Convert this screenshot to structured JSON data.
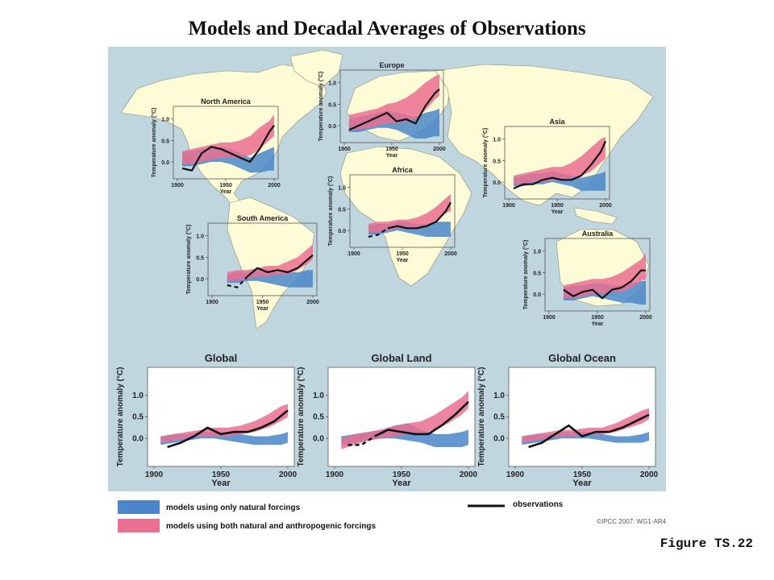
{
  "title": "Models and Decadal Averages of Observations",
  "figure_label": "Figure TS.22",
  "copyright": "©IPCC 2007: WG1-AR4",
  "legend": {
    "natural": "models using only natural forcings",
    "both": "models using both natural and anthropogenic forcings",
    "obs": "observations"
  },
  "colors": {
    "ocean": "#c0d6df",
    "land": "#fefcd6",
    "natural": "#4a86c9",
    "both": "#ea6f92",
    "overlap": "#9c5c92",
    "obs": "#111111"
  },
  "chart_data": [
    {
      "type": "area",
      "name": "North America",
      "ylabel": "Temperature anomaly (°C)",
      "xlabel": "Year",
      "xticks": [
        1900,
        1950,
        2000
      ],
      "yticks": [
        "0.0",
        "0.5",
        "1.0"
      ],
      "ylim": [
        -0.3,
        1.2
      ],
      "x": [
        1905,
        1915,
        1925,
        1935,
        1945,
        1955,
        1965,
        1975,
        1985,
        1995,
        2000
      ],
      "natural": {
        "low": [
          -0.1,
          -0.1,
          -0.05,
          0,
          0,
          -0.05,
          -0.15,
          -0.25,
          -0.25,
          -0.2,
          -0.2
        ],
        "high": [
          0.2,
          0.25,
          0.3,
          0.3,
          0.35,
          0.3,
          0.2,
          0.1,
          0.2,
          0.3,
          0.35
        ]
      },
      "both": {
        "low": [
          -0.05,
          -0.05,
          0,
          0.05,
          0.1,
          0.1,
          0.1,
          0.15,
          0.3,
          0.5,
          0.6
        ],
        "high": [
          0.25,
          0.3,
          0.35,
          0.4,
          0.45,
          0.45,
          0.5,
          0.6,
          0.8,
          0.95,
          1.1
        ]
      },
      "obs": {
        "x": [
          1905,
          1915,
          1925,
          1935,
          1945,
          1955,
          1965,
          1975,
          1985,
          1995,
          2000
        ],
        "y": [
          -0.15,
          -0.2,
          0.2,
          0.35,
          0.3,
          0.2,
          0.1,
          0.0,
          0.3,
          0.7,
          0.85
        ],
        "dashed_until": 0
      }
    },
    {
      "type": "area",
      "name": "Europe",
      "ylabel": "Temperature anomaly (°C)",
      "xlabel": "Year",
      "xticks": [
        1900,
        1950,
        2000
      ],
      "yticks": [
        "0.0",
        "0.5",
        "1.0"
      ],
      "ylim": [
        -0.3,
        1.2
      ],
      "x": [
        1905,
        1915,
        1925,
        1935,
        1945,
        1955,
        1965,
        1975,
        1985,
        1995,
        2000
      ],
      "natural": {
        "low": [
          -0.15,
          -0.15,
          -0.1,
          -0.05,
          -0.05,
          -0.1,
          -0.2,
          -0.3,
          -0.3,
          -0.25,
          -0.25
        ],
        "high": [
          0.15,
          0.2,
          0.25,
          0.3,
          0.35,
          0.3,
          0.25,
          0.2,
          0.3,
          0.35,
          0.4
        ],
        "both_x": 0
      },
      "both": {
        "low": [
          -0.1,
          -0.1,
          -0.05,
          0,
          0.05,
          0.05,
          0.1,
          0.15,
          0.35,
          0.6,
          0.7
        ],
        "high": [
          0.25,
          0.3,
          0.35,
          0.4,
          0.5,
          0.55,
          0.65,
          0.8,
          1.0,
          1.15,
          1.2
        ]
      },
      "obs": {
        "x": [
          1905,
          1915,
          1925,
          1935,
          1945,
          1955,
          1965,
          1975,
          1985,
          1995,
          2000
        ],
        "y": [
          -0.1,
          0.0,
          0.1,
          0.2,
          0.3,
          0.1,
          0.15,
          0.05,
          0.45,
          0.75,
          0.85
        ],
        "dashed_until": 0
      }
    },
    {
      "type": "area",
      "name": "Asia",
      "ylabel": "Temperature anomaly (°C)",
      "xlabel": "Year",
      "xticks": [
        1900,
        1950,
        2000
      ],
      "yticks": [
        "0.0",
        "0.5",
        "1.0"
      ],
      "ylim": [
        -0.3,
        1.2
      ],
      "x": [
        1905,
        1915,
        1925,
        1935,
        1945,
        1955,
        1965,
        1975,
        1985,
        1995,
        2000
      ],
      "natural": {
        "low": [
          -0.1,
          -0.1,
          -0.05,
          -0.05,
          0,
          -0.05,
          -0.1,
          -0.2,
          -0.2,
          -0.2,
          -0.2
        ],
        "high": [
          0.1,
          0.15,
          0.2,
          0.2,
          0.25,
          0.2,
          0.15,
          0.1,
          0.15,
          0.2,
          0.25
        ]
      },
      "both": {
        "low": [
          -0.05,
          -0.05,
          0,
          0,
          0.05,
          0.05,
          0.1,
          0.15,
          0.25,
          0.45,
          0.55
        ],
        "high": [
          0.15,
          0.2,
          0.25,
          0.3,
          0.35,
          0.35,
          0.45,
          0.6,
          0.8,
          1.0,
          1.05
        ]
      },
      "obs": {
        "x": [
          1905,
          1915,
          1925,
          1935,
          1945,
          1955,
          1965,
          1975,
          1985,
          1995,
          2000
        ],
        "y": [
          -0.15,
          -0.05,
          -0.05,
          0.05,
          0.1,
          0.05,
          0.05,
          0.15,
          0.4,
          0.7,
          0.95
        ],
        "dashed_until": 0
      }
    },
    {
      "type": "area",
      "name": "Africa",
      "ylabel": "Temperature anomaly (°C)",
      "xlabel": "Year",
      "xticks": [
        1900,
        1950,
        2000
      ],
      "yticks": [
        "0.0",
        "0.5",
        "1.0"
      ],
      "ylim": [
        -0.3,
        1.2
      ],
      "x": [
        1915,
        1925,
        1935,
        1945,
        1955,
        1965,
        1975,
        1985,
        1995,
        2000
      ],
      "natural": {
        "low": [
          -0.1,
          -0.1,
          -0.05,
          0,
          -0.05,
          -0.1,
          -0.15,
          -0.15,
          -0.15,
          -0.15
        ],
        "high": [
          0.1,
          0.15,
          0.15,
          0.2,
          0.2,
          0.15,
          0.15,
          0.2,
          0.2,
          0.2
        ]
      },
      "both": {
        "low": [
          -0.05,
          -0.05,
          0,
          0.05,
          0.05,
          0.05,
          0.1,
          0.2,
          0.4,
          0.45
        ],
        "high": [
          0.15,
          0.2,
          0.2,
          0.25,
          0.25,
          0.3,
          0.4,
          0.55,
          0.75,
          0.85
        ]
      },
      "obs": {
        "x": [
          1915,
          1925,
          1935,
          1945,
          1955,
          1965,
          1975,
          1985,
          1995,
          2000
        ],
        "y": [
          -0.15,
          -0.1,
          0.05,
          0.1,
          0.05,
          0.05,
          0.1,
          0.2,
          0.45,
          0.65
        ],
        "dashed_until": 2
      }
    },
    {
      "type": "area",
      "name": "South America",
      "ylabel": "Temperature anomaly (°C)",
      "xlabel": "Year",
      "xticks": [
        1900,
        1950,
        2000
      ],
      "yticks": [
        "0.0",
        "0.5",
        "1.0"
      ],
      "ylim": [
        -0.3,
        1.2
      ],
      "x": [
        1915,
        1925,
        1935,
        1945,
        1955,
        1965,
        1975,
        1985,
        1995,
        2000
      ],
      "natural": {
        "low": [
          -0.1,
          -0.1,
          -0.05,
          -0.05,
          -0.1,
          -0.15,
          -0.2,
          -0.2,
          -0.2,
          -0.2
        ],
        "high": [
          0.1,
          0.15,
          0.15,
          0.2,
          0.2,
          0.15,
          0.15,
          0.15,
          0.2,
          0.2
        ]
      },
      "both": {
        "low": [
          -0.05,
          -0.05,
          0,
          0.05,
          0.05,
          0.1,
          0.1,
          0.2,
          0.35,
          0.45
        ],
        "high": [
          0.15,
          0.2,
          0.2,
          0.25,
          0.3,
          0.3,
          0.4,
          0.5,
          0.7,
          0.8
        ]
      },
      "obs": {
        "x": [
          1915,
          1925,
          1935,
          1945,
          1955,
          1965,
          1975,
          1985,
          1995,
          2000
        ],
        "y": [
          -0.15,
          -0.2,
          0.05,
          0.25,
          0.15,
          0.2,
          0.15,
          0.25,
          0.45,
          0.55
        ],
        "dashed_until": 2
      }
    },
    {
      "type": "area",
      "name": "Australia",
      "ylabel": "Temperature anomaly (°C)",
      "xlabel": "Year",
      "xticks": [
        1900,
        1950,
        2000
      ],
      "yticks": [
        "0.0",
        "0.5",
        "1.0"
      ],
      "ylim": [
        -0.3,
        1.2
      ],
      "x": [
        1915,
        1925,
        1935,
        1945,
        1955,
        1965,
        1975,
        1985,
        1995,
        2000
      ],
      "natural": {
        "low": [
          -0.15,
          -0.15,
          -0.1,
          -0.05,
          -0.1,
          -0.15,
          -0.2,
          -0.2,
          -0.25,
          -0.25
        ],
        "high": [
          0.15,
          0.2,
          0.2,
          0.25,
          0.25,
          0.2,
          0.2,
          0.25,
          0.3,
          0.3
        ]
      },
      "both": {
        "low": [
          -0.1,
          -0.1,
          -0.05,
          0,
          0,
          0.05,
          0.05,
          0.15,
          0.3,
          0.35
        ],
        "high": [
          0.2,
          0.25,
          0.3,
          0.35,
          0.35,
          0.4,
          0.5,
          0.65,
          0.8,
          0.95
        ]
      },
      "obs": {
        "x": [
          1915,
          1925,
          1935,
          1945,
          1955,
          1965,
          1975,
          1985,
          1995,
          2000
        ],
        "y": [
          0.1,
          -0.05,
          0.05,
          0.1,
          -0.1,
          0.1,
          0.15,
          0.3,
          0.55,
          0.55
        ],
        "dashed_until": 0
      }
    },
    {
      "type": "area",
      "name": "Global",
      "ylabel": "Temperature anomaly (°C)",
      "xlabel": "Year",
      "xticks": [
        1900,
        1950,
        2000
      ],
      "yticks": [
        "0.0",
        "0.5",
        "1.0"
      ],
      "ylim": [
        -0.5,
        1.5
      ],
      "x": [
        1905,
        1915,
        1925,
        1935,
        1945,
        1955,
        1965,
        1975,
        1985,
        1995,
        2000
      ],
      "natural": {
        "low": [
          -0.15,
          -0.1,
          -0.05,
          0,
          0,
          -0.05,
          -0.1,
          -0.15,
          -0.15,
          -0.15,
          -0.1
        ],
        "high": [
          0.05,
          0.1,
          0.1,
          0.15,
          0.15,
          0.15,
          0.1,
          0.05,
          0.05,
          0.1,
          0.15
        ]
      },
      "both": {
        "low": [
          -0.1,
          -0.05,
          0,
          0.05,
          0.05,
          0.05,
          0.1,
          0.15,
          0.25,
          0.4,
          0.5
        ],
        "high": [
          0.05,
          0.1,
          0.15,
          0.2,
          0.25,
          0.25,
          0.3,
          0.4,
          0.55,
          0.75,
          0.8
        ]
      },
      "obs": {
        "x": [
          1910,
          1920,
          1930,
          1940,
          1950,
          1960,
          1970,
          1980,
          1990,
          2000
        ],
        "y": [
          -0.2,
          -0.1,
          0.05,
          0.25,
          0.1,
          0.15,
          0.15,
          0.25,
          0.4,
          0.65
        ],
        "dashed_until": 0
      }
    },
    {
      "type": "area",
      "name": "Global Land",
      "ylabel": "Temperature anomaly (°C)",
      "xlabel": "Year",
      "xticks": [
        1900,
        1950,
        2000
      ],
      "yticks": [
        "0.0",
        "0.5",
        "1.0"
      ],
      "ylim": [
        -0.5,
        1.5
      ],
      "x": [
        1905,
        1915,
        1925,
        1935,
        1945,
        1955,
        1965,
        1975,
        1985,
        1995,
        2000
      ],
      "natural": {
        "low": [
          -0.15,
          -0.1,
          -0.05,
          0,
          0,
          -0.05,
          -0.1,
          -0.2,
          -0.2,
          -0.2,
          -0.15
        ],
        "high": [
          0.05,
          0.1,
          0.15,
          0.2,
          0.3,
          0.35,
          0.2,
          0.1,
          0.1,
          0.15,
          0.2
        ]
      },
      "both": {
        "low": [
          -0.25,
          -0.15,
          -0.05,
          0,
          0.05,
          0.1,
          0.1,
          0.2,
          0.35,
          0.55,
          0.7
        ],
        "high": [
          0.0,
          0.1,
          0.15,
          0.2,
          0.3,
          0.35,
          0.4,
          0.55,
          0.75,
          0.95,
          1.1
        ]
      },
      "obs": {
        "x": [
          1910,
          1920,
          1930,
          1940,
          1950,
          1960,
          1970,
          1980,
          1990,
          2000
        ],
        "y": [
          -0.15,
          -0.15,
          0.05,
          0.2,
          0.15,
          0.1,
          0.1,
          0.3,
          0.55,
          0.85
        ],
        "dashed_until": 2
      }
    },
    {
      "type": "area",
      "name": "Global Ocean",
      "ylabel": "Temperature anomaly (°C)",
      "xlabel": "Year",
      "xticks": [
        1900,
        1950,
        2000
      ],
      "yticks": [
        "0.0",
        "0.5",
        "1.0"
      ],
      "ylim": [
        -0.5,
        1.5
      ],
      "x": [
        1905,
        1915,
        1925,
        1935,
        1945,
        1955,
        1965,
        1975,
        1985,
        1995,
        2000
      ],
      "natural": {
        "low": [
          -0.15,
          -0.1,
          -0.05,
          0,
          0,
          0,
          -0.05,
          -0.1,
          -0.1,
          -0.1,
          -0.05
        ],
        "high": [
          0.05,
          0.1,
          0.1,
          0.15,
          0.15,
          0.15,
          0.1,
          0.05,
          0.05,
          0.1,
          0.15
        ]
      },
      "both": {
        "low": [
          -0.1,
          -0.05,
          0,
          0.05,
          0.05,
          0.1,
          0.1,
          0.15,
          0.25,
          0.35,
          0.45
        ],
        "high": [
          0.05,
          0.1,
          0.15,
          0.2,
          0.2,
          0.25,
          0.25,
          0.35,
          0.5,
          0.65,
          0.7
        ]
      },
      "obs": {
        "x": [
          1910,
          1920,
          1930,
          1940,
          1950,
          1960,
          1970,
          1980,
          1990,
          2000
        ],
        "y": [
          -0.2,
          -0.1,
          0.1,
          0.3,
          0.05,
          0.15,
          0.15,
          0.25,
          0.4,
          0.55
        ],
        "dashed_until": 0
      }
    }
  ]
}
